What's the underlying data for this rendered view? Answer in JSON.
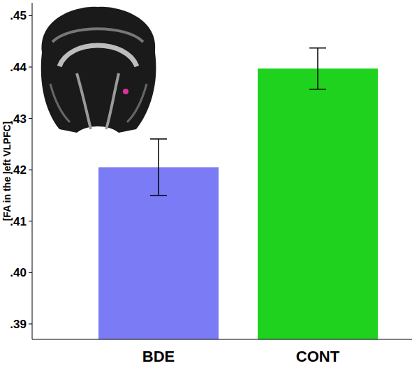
{
  "chart_data": {
    "type": "bar",
    "y_label": "[FA in the left VLPFC]",
    "categories": [
      "BDE",
      "CONT"
    ],
    "values": [
      0.4205,
      0.4397
    ],
    "errors": [
      0.0055,
      0.004
    ],
    "colors": [
      "#7b7bf6",
      "#1ed21e"
    ],
    "ylim": [
      0.387,
      0.4525
    ],
    "yticks": [
      {
        "value": 0.39,
        "label": ".39"
      },
      {
        "value": 0.4,
        "label": ".40"
      },
      {
        "value": 0.41,
        "label": ".41"
      },
      {
        "value": 0.42,
        "label": ".42"
      },
      {
        "value": 0.43,
        "label": ".43"
      },
      {
        "value": 0.44,
        "label": ".44"
      },
      {
        "value": 0.45,
        "label": ".45"
      }
    ],
    "grid": false
  }
}
